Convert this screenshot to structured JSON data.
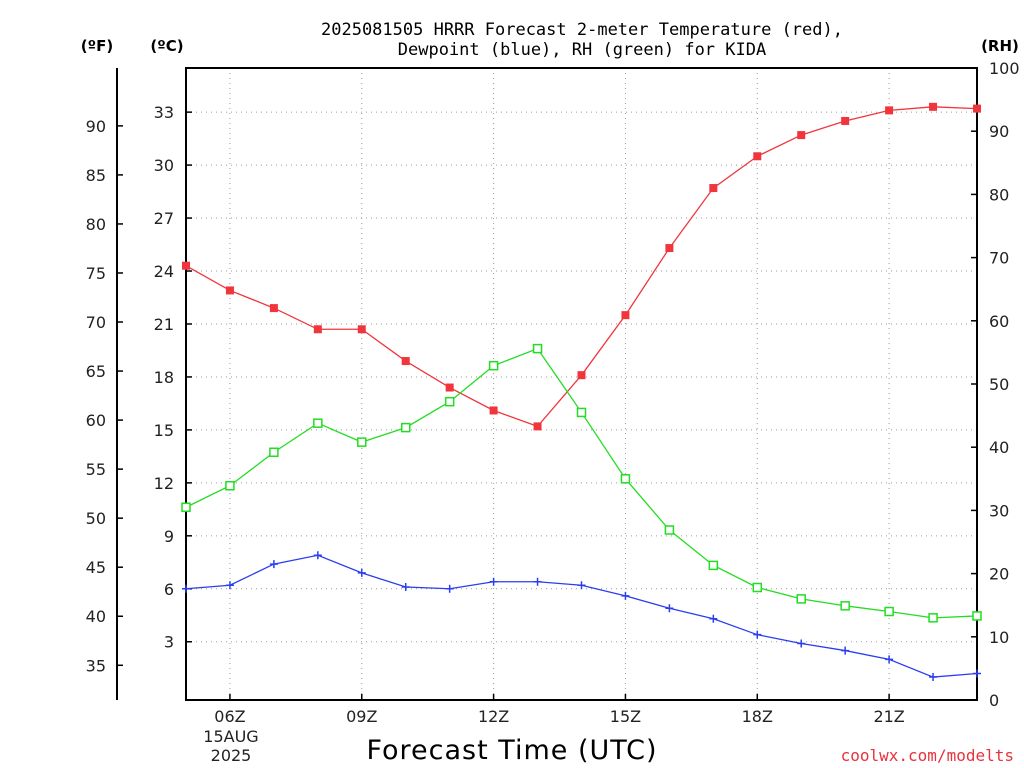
{
  "title": {
    "line1": "2025081505 HRRR Forecast 2-meter Temperature (red),",
    "line2": "Dewpoint (blue), RH (green) for KIDA"
  },
  "units": {
    "fahrenheit": "(ºF)",
    "celsius": "(ºC)",
    "rh": "(RH)"
  },
  "xlabel": "Forecast Time (UTC)",
  "credit": "coolwx.com/modelts",
  "date_label": [
    "15AUG",
    "2025"
  ],
  "colors": {
    "temperature": "#f0353d",
    "dewpoint": "#2a3ef0",
    "rh": "#22dd22",
    "axes": "#000000"
  },
  "chart_data": {
    "type": "line",
    "x": [
      "05Z",
      "06Z",
      "07Z",
      "08Z",
      "09Z",
      "10Z",
      "11Z",
      "12Z",
      "13Z",
      "14Z",
      "15Z",
      "16Z",
      "17Z",
      "18Z",
      "19Z",
      "20Z",
      "21Z",
      "22Z",
      "23Z"
    ],
    "x_tick_labels": [
      {
        "at": "06Z",
        "label": "06Z"
      },
      {
        "at": "09Z",
        "label": "09Z"
      },
      {
        "at": "12Z",
        "label": "12Z"
      },
      {
        "at": "15Z",
        "label": "15Z"
      },
      {
        "at": "18Z",
        "label": "18Z"
      },
      {
        "at": "21Z",
        "label": "21Z"
      }
    ],
    "series": [
      {
        "key": "temperature",
        "axis": "celsius",
        "marker": "filled-square",
        "values": [
          24.3,
          22.9,
          21.9,
          20.7,
          20.7,
          18.9,
          17.4,
          16.1,
          15.2,
          18.1,
          21.5,
          25.3,
          28.7,
          30.5,
          31.7,
          32.5,
          33.1,
          33.3,
          33.2
        ]
      },
      {
        "key": "dewpoint",
        "axis": "celsius",
        "marker": "plus",
        "values": [
          6.0,
          6.2,
          7.4,
          7.9,
          6.9,
          6.1,
          6.0,
          6.4,
          6.4,
          6.2,
          5.6,
          4.9,
          4.3,
          3.4,
          2.9,
          2.5,
          2.0,
          1.0,
          1.2
        ]
      },
      {
        "key": "rh",
        "axis": "rh",
        "marker": "open-square",
        "values": [
          30.5,
          33.9,
          39.2,
          43.8,
          40.8,
          43.1,
          47.2,
          52.9,
          55.6,
          45.5,
          35.0,
          26.9,
          21.3,
          17.8,
          16.0,
          14.9,
          14.0,
          13.0,
          13.3
        ]
      }
    ],
    "celsius_axis": {
      "ylim": [
        -0.3,
        35.5
      ],
      "ticks": [
        3,
        6,
        9,
        12,
        15,
        18,
        21,
        24,
        27,
        30,
        33
      ]
    },
    "fahrenheit_axis": {
      "ticks": [
        35,
        40,
        45,
        50,
        55,
        60,
        65,
        70,
        75,
        80,
        85,
        90
      ]
    },
    "rh_axis": {
      "ylim": [
        0,
        100
      ],
      "ticks": [
        0,
        10,
        20,
        30,
        40,
        50,
        60,
        70,
        80,
        90,
        100
      ]
    },
    "grid": true
  }
}
